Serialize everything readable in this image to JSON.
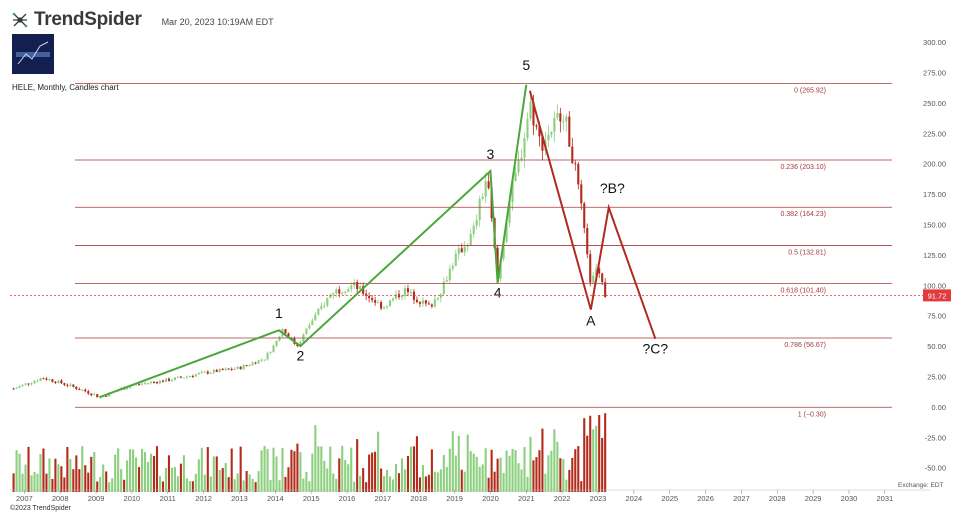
{
  "header": {
    "brand_name": "TrendSpider",
    "datetime": "Mar 20, 2023 10:19AM EDT",
    "ticker_line": "HELE, Monthly, Candles chart",
    "logo_icon": "trendspider-spider-icon"
  },
  "footer": {
    "copyright": "©2023 TrendSpider",
    "exchange": "Exchange: EDT"
  },
  "colors": {
    "up": "#8ccf7e",
    "down": "#b32a1a",
    "fib_line": "#a43a3a",
    "wave_up": "#4aa73c",
    "wave_down": "#b02a22",
    "price_tag": "#e23b3b"
  },
  "chart_data": {
    "type": "candlestick",
    "title": "HELE, Monthly, Candles chart",
    "x_ticks": [
      "2007",
      "2008",
      "2009",
      "2010",
      "2011",
      "2012",
      "2013",
      "2014",
      "2015",
      "2016",
      "2017",
      "2018",
      "2019",
      "2020",
      "2021",
      "2022",
      "2023",
      "2024",
      "2025",
      "2026",
      "2027",
      "2028",
      "2029",
      "2030",
      "2031"
    ],
    "y_ticks": [
      "300.00",
      "275.00",
      "250.00",
      "225.00",
      "200.00",
      "175.00",
      "150.00",
      "125.00",
      "100.00",
      "75.00",
      "50.00",
      "25.00",
      "0.00",
      "-25.00",
      "-50.00"
    ],
    "y_ticks_values": [
      300,
      275,
      250,
      225,
      200,
      175,
      150,
      125,
      100,
      75,
      50,
      25,
      0,
      -25,
      -50
    ],
    "ylim": [
      -70,
      310
    ],
    "xlim": [
      2006.6,
      2031.2
    ],
    "current_price": {
      "value": 91.72,
      "label": "91.72"
    },
    "fib_levels": [
      {
        "value": 265.92,
        "label": "0 (265.92)"
      },
      {
        "value": 203.1,
        "label": "0.236 (203.10)"
      },
      {
        "value": 164.23,
        "label": "0.382 (164.23)"
      },
      {
        "value": 132.81,
        "label": "0.5 (132.81)"
      },
      {
        "value": 101.4,
        "label": "0.618 (101.40)"
      },
      {
        "value": 56.67,
        "label": "0.786 (56.67)"
      },
      {
        "value": -0.3,
        "label": "1 (−0.30)"
      }
    ],
    "wave_up": {
      "points": [
        [
          2009.1,
          8
        ],
        [
          2014.1,
          63
        ],
        [
          2014.7,
          50
        ],
        [
          2020.0,
          194
        ],
        [
          2020.2,
          102
        ],
        [
          2021.0,
          265
        ]
      ],
      "labels": [
        {
          "text": "1",
          "x": 2014.1,
          "y": 73
        },
        {
          "text": "2",
          "x": 2014.7,
          "y": 38
        },
        {
          "text": "3",
          "x": 2020.0,
          "y": 204
        },
        {
          "text": "4",
          "x": 2020.2,
          "y": 90
        },
        {
          "text": "5",
          "x": 2021.0,
          "y": 277
        }
      ]
    },
    "wave_down": {
      "points": [
        [
          2021.1,
          260
        ],
        [
          2022.8,
          80
        ],
        [
          2023.3,
          164
        ],
        [
          2024.6,
          56
        ]
      ],
      "labels": [
        {
          "text": "A",
          "x": 2022.8,
          "y": 67
        },
        {
          "text": "?B?",
          "x": 2023.4,
          "y": 176
        },
        {
          "text": "?C?",
          "x": 2024.6,
          "y": 44
        }
      ]
    },
    "price_anchors": [
      [
        2006.7,
        15
      ],
      [
        2007.5,
        24
      ],
      [
        2008.0,
        20
      ],
      [
        2008.8,
        12
      ],
      [
        2009.1,
        8
      ],
      [
        2010.0,
        18
      ],
      [
        2011.0,
        22
      ],
      [
        2012.0,
        28
      ],
      [
        2013.0,
        32
      ],
      [
        2013.7,
        40
      ],
      [
        2014.0,
        52
      ],
      [
        2014.2,
        64
      ],
      [
        2014.6,
        50
      ],
      [
        2015.0,
        70
      ],
      [
        2015.6,
        95
      ],
      [
        2016.2,
        100
      ],
      [
        2017.0,
        82
      ],
      [
        2017.6,
        96
      ],
      [
        2018.3,
        82
      ],
      [
        2018.6,
        95
      ],
      [
        2019.0,
        122
      ],
      [
        2019.5,
        142
      ],
      [
        2019.9,
        190
      ],
      [
        2020.2,
        105
      ],
      [
        2020.5,
        165
      ],
      [
        2020.9,
        215
      ],
      [
        2021.1,
        250
      ],
      [
        2021.4,
        215
      ],
      [
        2021.9,
        238
      ],
      [
        2022.0,
        248
      ],
      [
        2022.3,
        205
      ],
      [
        2022.5,
        170
      ],
      [
        2022.8,
        100
      ],
      [
        2023.0,
        118
      ],
      [
        2023.2,
        92
      ]
    ],
    "volume_scale": {
      "baseline": -70,
      "max_top": -5
    }
  }
}
